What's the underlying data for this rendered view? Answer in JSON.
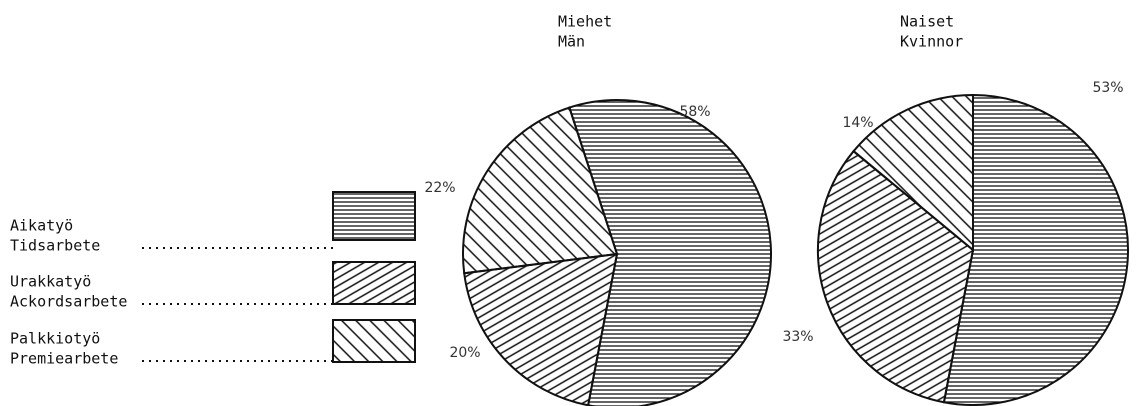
{
  "legend": [
    [
      "Aikatyö",
      "Tidsarbete"
    ],
    [
      "Urakkatyö",
      "Ackordsarbete"
    ],
    [
      "Palkkiotyö",
      "Premiearbete"
    ]
  ],
  "patterns": [
    "horizontal",
    "forward-diagonal",
    "back-diagonal"
  ],
  "chart_data": [
    {
      "type": "pie",
      "title": [
        "Miehet",
        "Män"
      ],
      "values": [
        58,
        20,
        22
      ],
      "value_labels": [
        "58%",
        "20%",
        "22%"
      ]
    },
    {
      "type": "pie",
      "title": [
        "Naiset",
        "Kvinnor"
      ],
      "values": [
        53,
        33,
        14
      ],
      "value_labels": [
        "53%",
        "33%",
        "14%"
      ]
    }
  ]
}
